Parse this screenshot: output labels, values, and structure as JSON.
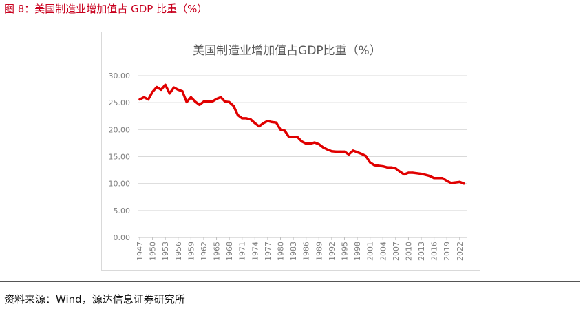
{
  "figure": {
    "title": "图 8：美国制造业增加值占 GDP 比重（%）",
    "source": "资料来源：Wind，源达信息证券研究所"
  },
  "chart_data": {
    "type": "line",
    "title": "美国制造业增加值占GDP比重（%）",
    "xlabel": "",
    "ylabel": "",
    "ylim": [
      0,
      30
    ],
    "yticks": [
      "0.00",
      "5.00",
      "10.00",
      "15.00",
      "20.00",
      "25.00",
      "30.00"
    ],
    "xticks": [
      "1947",
      "1950",
      "1953",
      "1956",
      "1959",
      "1962",
      "1965",
      "1968",
      "1971",
      "1974",
      "1977",
      "1980",
      "1983",
      "1986",
      "1989",
      "1992",
      "1995",
      "1998",
      "2001",
      "2004",
      "2007",
      "2010",
      "2013",
      "2016",
      "2019",
      "2022"
    ],
    "grid": true,
    "legend": "none",
    "color": "#e00000",
    "series": [
      {
        "x": [
          1947,
          1948,
          1949,
          1950,
          1951,
          1952,
          1953,
          1954,
          1955,
          1956,
          1957,
          1958,
          1959,
          1960,
          1961,
          1962,
          1963,
          1964,
          1965,
          1966,
          1967,
          1968,
          1969,
          1970,
          1971,
          1972,
          1973,
          1974,
          1975,
          1976,
          1977,
          1978,
          1979,
          1980,
          1981,
          1982,
          1983,
          1984,
          1985,
          1986,
          1987,
          1988,
          1989,
          1990,
          1991,
          1992,
          1993,
          1994,
          1995,
          1996,
          1997,
          1998,
          1999,
          2000,
          2001,
          2002,
          2003,
          2004,
          2005,
          2006,
          2007,
          2008,
          2009,
          2010,
          2011,
          2012,
          2013,
          2014,
          2015,
          2016,
          2017,
          2018,
          2019,
          2020,
          2021,
          2022,
          2023
        ],
        "values": [
          25.6,
          26.0,
          25.6,
          27.0,
          27.9,
          27.4,
          28.3,
          26.7,
          27.8,
          27.4,
          27.1,
          25.1,
          26.0,
          25.2,
          24.6,
          25.2,
          25.2,
          25.2,
          25.7,
          26.0,
          25.2,
          25.1,
          24.4,
          22.7,
          22.1,
          22.1,
          21.9,
          21.2,
          20.6,
          21.2,
          21.6,
          21.4,
          21.3,
          20.0,
          19.8,
          18.6,
          18.6,
          18.6,
          17.8,
          17.4,
          17.4,
          17.6,
          17.3,
          16.7,
          16.3,
          16.0,
          15.9,
          15.9,
          15.9,
          15.4,
          16.1,
          15.8,
          15.5,
          15.1,
          13.9,
          13.4,
          13.3,
          13.2,
          13.0,
          13.0,
          12.8,
          12.2,
          11.7,
          12.0,
          12.0,
          11.9,
          11.8,
          11.6,
          11.4,
          11.0,
          11.0,
          11.0,
          10.5,
          10.1,
          10.2,
          10.3,
          10.0
        ]
      }
    ]
  }
}
